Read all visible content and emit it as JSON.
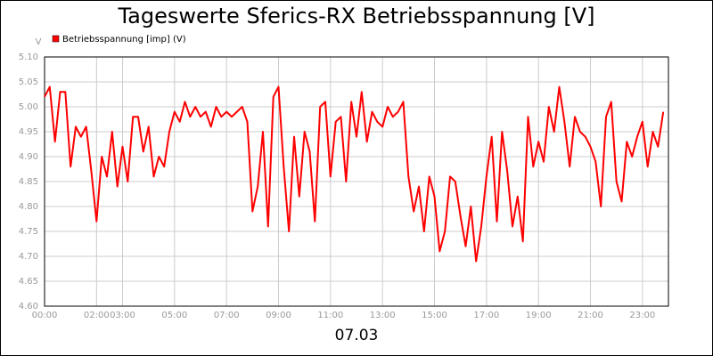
{
  "chart_data": {
    "type": "line",
    "title": "Tageswerte Sferics-RX Betriebsspannung [V]",
    "y_label": "V",
    "x_label": "07.03",
    "x": [
      0,
      0.2,
      0.4,
      0.6,
      0.8,
      1,
      1.2,
      1.4,
      1.6,
      1.8,
      2,
      2.2,
      2.4,
      2.6,
      2.8,
      3,
      3.2,
      3.4,
      3.6,
      3.8,
      4,
      4.2,
      4.4,
      4.6,
      4.8,
      5,
      5.2,
      5.4,
      5.6,
      5.8,
      6,
      6.2,
      6.4,
      6.6,
      6.8,
      7,
      7.2,
      7.4,
      7.6,
      7.8,
      8,
      8.2,
      8.4,
      8.6,
      8.8,
      9,
      9.2,
      9.4,
      9.6,
      9.8,
      10,
      10.2,
      10.4,
      10.6,
      10.8,
      11,
      11.2,
      11.4,
      11.6,
      11.8,
      12,
      12.2,
      12.4,
      12.6,
      12.8,
      13,
      13.2,
      13.4,
      13.6,
      13.8,
      14,
      14.2,
      14.4,
      14.6,
      14.8,
      15,
      15.2,
      15.4,
      15.6,
      15.8,
      16,
      16.2,
      16.4,
      16.6,
      16.8,
      17,
      17.2,
      17.4,
      17.6,
      17.8,
      18,
      18.2,
      18.4,
      18.6,
      18.8,
      19,
      19.2,
      19.4,
      19.6,
      19.8,
      20,
      20.2,
      20.4,
      20.6,
      20.8,
      21,
      21.2,
      21.4,
      21.6,
      21.8,
      22,
      22.2,
      22.4,
      22.6,
      22.8,
      23,
      23.2,
      23.4,
      23.6,
      23.8
    ],
    "series": [
      {
        "name": "Betriebsspannung [imp] (V)",
        "color": "#ff0000",
        "values": [
          5.02,
          5.04,
          4.93,
          5.03,
          5.03,
          4.88,
          4.96,
          4.94,
          4.96,
          4.87,
          4.77,
          4.9,
          4.86,
          4.95,
          4.84,
          4.92,
          4.85,
          4.98,
          4.98,
          4.91,
          4.96,
          4.86,
          4.9,
          4.88,
          4.95,
          4.99,
          4.97,
          5.01,
          4.98,
          5.0,
          4.98,
          4.99,
          4.96,
          5.0,
          4.98,
          4.99,
          4.98,
          4.99,
          5.0,
          4.97,
          4.79,
          4.84,
          4.95,
          4.76,
          5.02,
          5.04,
          4.88,
          4.75,
          4.94,
          4.82,
          4.95,
          4.91,
          4.77,
          5.0,
          5.01,
          4.86,
          4.97,
          4.98,
          4.85,
          5.01,
          4.94,
          5.03,
          4.93,
          4.99,
          4.97,
          4.96,
          5.0,
          4.98,
          4.99,
          5.01,
          4.86,
          4.79,
          4.84,
          4.75,
          4.86,
          4.82,
          4.71,
          4.75,
          4.86,
          4.85,
          4.78,
          4.72,
          4.8,
          4.69,
          4.76,
          4.86,
          4.94,
          4.77,
          4.95,
          4.87,
          4.76,
          4.82,
          4.73,
          4.98,
          4.88,
          4.93,
          4.89,
          5.0,
          4.95,
          5.04,
          4.97,
          4.88,
          4.98,
          4.95,
          4.94,
          4.92,
          4.89,
          4.8,
          4.98,
          5.01,
          4.85,
          4.81,
          4.93,
          4.9,
          4.94,
          4.97,
          4.88,
          4.95,
          4.92,
          4.99
        ]
      }
    ],
    "xlim": [
      0,
      24
    ],
    "xticks": [
      {
        "value": 0,
        "label": "00:00"
      },
      {
        "value": 2,
        "label": "02:00"
      },
      {
        "value": 3,
        "label": "03:00"
      },
      {
        "value": 5,
        "label": "05:00"
      },
      {
        "value": 7,
        "label": "07:00"
      },
      {
        "value": 9,
        "label": "09:00"
      },
      {
        "value": 11,
        "label": "11:00"
      },
      {
        "value": 13,
        "label": "13:00"
      },
      {
        "value": 15,
        "label": "15:00"
      },
      {
        "value": 17,
        "label": "17:00"
      },
      {
        "value": 19,
        "label": "19:00"
      },
      {
        "value": 21,
        "label": "21:00"
      },
      {
        "value": 23,
        "label": "23:00"
      }
    ],
    "ylim": [
      4.6,
      5.1
    ],
    "yticks": [
      {
        "value": 4.6,
        "label": "4.60"
      },
      4.65,
      {
        "value": 4.7,
        "label": "4.70"
      },
      4.75,
      {
        "value": 4.8,
        "label": "4.80"
      },
      4.85,
      {
        "value": 4.9,
        "label": "4.90"
      },
      4.95,
      {
        "value": 5.0,
        "label": "5.00"
      },
      5.05,
      {
        "value": 5.1,
        "label": "5.10"
      }
    ],
    "grid": true
  }
}
